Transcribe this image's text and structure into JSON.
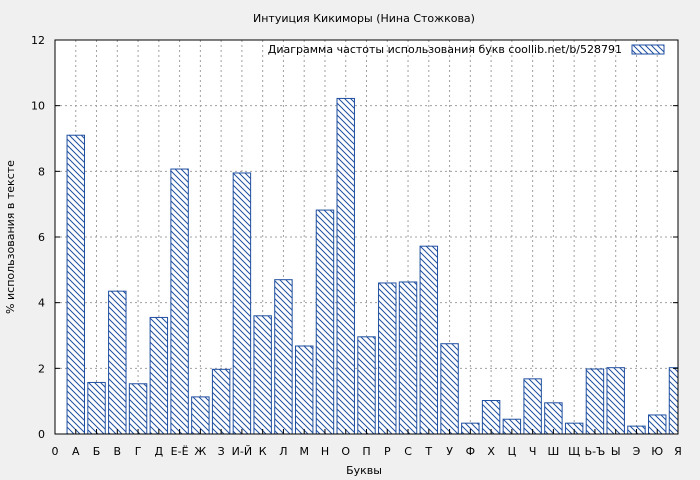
{
  "chart_data": {
    "type": "bar",
    "title": "Интуиция Кикиморы (Нина Стожкова)",
    "xlabel": "Буквы",
    "ylabel": "% использования в тексте",
    "ylim": [
      0,
      12
    ],
    "yticks": [
      0,
      2,
      4,
      6,
      8,
      10,
      12
    ],
    "grid": true,
    "legend_position": "top-right",
    "x_tick_labels": [
      "0",
      "А",
      "Б",
      "В",
      "Г",
      "Д",
      "Е-Ё",
      "Ж",
      "З",
      "И-Й",
      "К",
      "Л",
      "М",
      "Н",
      "О",
      "П",
      "Р",
      "С",
      "Т",
      "У",
      "Ф",
      "Х",
      "Ц",
      "Ч",
      "Ш",
      "Щ",
      "Ь-Ъ",
      "Ы",
      "Э",
      "Ю",
      "Я"
    ],
    "categories": [
      "А",
      "Б",
      "В",
      "Г",
      "Д",
      "Е-Ё",
      "Ж",
      "З",
      "И-Й",
      "К",
      "Л",
      "М",
      "Н",
      "О",
      "П",
      "Р",
      "С",
      "Т",
      "У",
      "Ф",
      "Х",
      "Ц",
      "Ч",
      "Ш",
      "Щ",
      "Ь-Ъ",
      "Ы",
      "Э",
      "Ю",
      "Я"
    ],
    "series": [
      {
        "name": "Диаграмма частоты использования букв  coollib.net/b/528791",
        "color": "#1f4fa0",
        "values": [
          9.1,
          1.57,
          4.35,
          1.53,
          3.55,
          8.07,
          1.13,
          1.97,
          7.95,
          3.6,
          4.7,
          2.68,
          6.82,
          10.22,
          2.96,
          4.6,
          4.63,
          5.72,
          2.75,
          0.33,
          1.02,
          0.45,
          1.68,
          0.95,
          0.33,
          1.98,
          2.02,
          0.24,
          0.58,
          2.02
        ]
      }
    ]
  }
}
